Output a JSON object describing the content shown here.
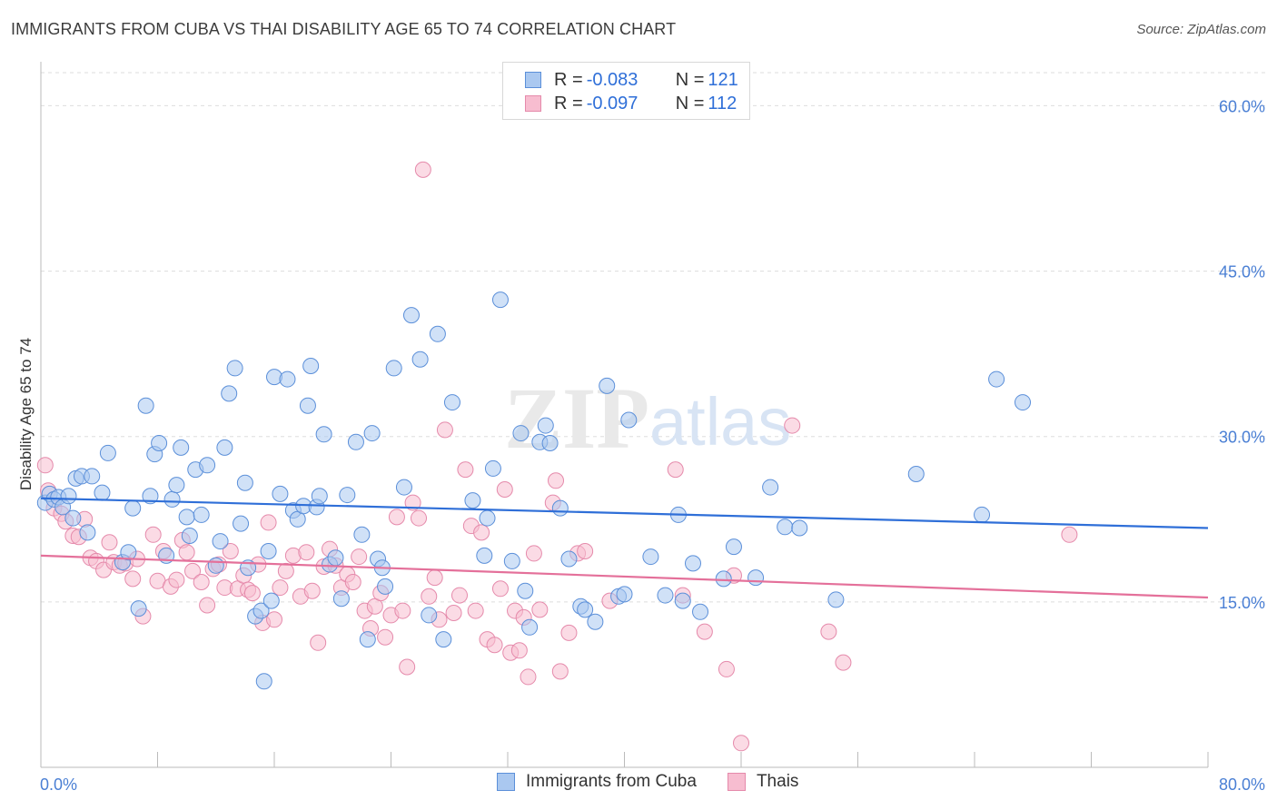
{
  "header": {
    "title": "IMMIGRANTS FROM CUBA VS THAI DISABILITY AGE 65 TO 74 CORRELATION CHART",
    "source": "Source: ZipAtlas.com"
  },
  "watermark": {
    "zip": "ZIP",
    "atlas": "atlas"
  },
  "legend": {
    "rows": [
      {
        "r_label": "R = ",
        "r_value": "-0.083",
        "n_label": "N = ",
        "n_value": "121"
      },
      {
        "r_label": "R = ",
        "r_value": "-0.097",
        "n_label": "N = ",
        "n_value": "112"
      }
    ]
  },
  "bottom_legend": {
    "items": [
      {
        "label": "Immigrants from Cuba"
      },
      {
        "label": "Thais"
      }
    ]
  },
  "chart_data": {
    "type": "scatter",
    "title": "IMMIGRANTS FROM CUBA VS THAI DISABILITY AGE 65 TO 74 CORRELATION CHART",
    "xlabel": "",
    "ylabel": "Disability Age 65 to 74",
    "xlim": [
      0,
      80
    ],
    "ylim": [
      0,
      63
    ],
    "x_tick_labels": [
      "0.0%",
      "80.0%"
    ],
    "y_ticks": [
      15,
      30,
      45,
      60
    ],
    "y_tick_labels": [
      "15.0%",
      "30.0%",
      "45.0%",
      "60.0%"
    ],
    "grid": true,
    "legend_position": "top-center",
    "colors": {
      "cuba_fill": "#aac8f0",
      "cuba_stroke": "#5b8fd9",
      "cuba_line": "#2f6fd8",
      "thai_fill": "#f7bdd0",
      "thai_stroke": "#e58aab",
      "thai_line": "#e4709a",
      "tick_text": "#4a7fd4",
      "grid": "#dddddd"
    },
    "series": [
      {
        "name": "Immigrants from Cuba",
        "trend": {
          "x": [
            0,
            80
          ],
          "y": [
            24.4,
            21.7
          ]
        },
        "points": [
          [
            0.3,
            24.0
          ],
          [
            0.6,
            24.8
          ],
          [
            0.9,
            24.3
          ],
          [
            1.2,
            24.5
          ],
          [
            1.5,
            23.6
          ],
          [
            1.9,
            24.6
          ],
          [
            2.2,
            22.6
          ],
          [
            2.4,
            26.2
          ],
          [
            2.8,
            26.4
          ],
          [
            3.2,
            21.3
          ],
          [
            3.5,
            26.4
          ],
          [
            4.2,
            24.9
          ],
          [
            4.6,
            28.5
          ],
          [
            5.6,
            18.6
          ],
          [
            6.0,
            19.5
          ],
          [
            6.3,
            23.5
          ],
          [
            6.7,
            14.4
          ],
          [
            7.2,
            32.8
          ],
          [
            7.5,
            24.6
          ],
          [
            7.8,
            28.4
          ],
          [
            8.1,
            29.4
          ],
          [
            8.6,
            19.2
          ],
          [
            9.0,
            24.3
          ],
          [
            9.3,
            25.6
          ],
          [
            9.6,
            29.0
          ],
          [
            10.0,
            22.7
          ],
          [
            10.2,
            21.0
          ],
          [
            10.6,
            27.0
          ],
          [
            11.0,
            22.9
          ],
          [
            11.4,
            27.4
          ],
          [
            12.0,
            18.3
          ],
          [
            12.3,
            20.5
          ],
          [
            12.6,
            29.0
          ],
          [
            12.9,
            33.9
          ],
          [
            13.3,
            36.2
          ],
          [
            13.7,
            22.1
          ],
          [
            14.0,
            25.8
          ],
          [
            14.2,
            18.1
          ],
          [
            14.7,
            13.7
          ],
          [
            15.1,
            14.2
          ],
          [
            15.3,
            7.8
          ],
          [
            15.6,
            19.6
          ],
          [
            15.8,
            15.1
          ],
          [
            16.0,
            35.4
          ],
          [
            16.4,
            24.8
          ],
          [
            16.9,
            35.2
          ],
          [
            17.3,
            23.3
          ],
          [
            17.6,
            22.5
          ],
          [
            18.0,
            23.7
          ],
          [
            18.3,
            32.8
          ],
          [
            18.5,
            36.4
          ],
          [
            18.9,
            23.6
          ],
          [
            19.1,
            24.6
          ],
          [
            19.4,
            30.2
          ],
          [
            19.8,
            18.4
          ],
          [
            20.2,
            19.0
          ],
          [
            20.6,
            15.3
          ],
          [
            21.0,
            24.7
          ],
          [
            21.6,
            29.5
          ],
          [
            22.0,
            21.1
          ],
          [
            22.4,
            11.6
          ],
          [
            22.7,
            30.3
          ],
          [
            23.1,
            18.9
          ],
          [
            23.4,
            18.1
          ],
          [
            23.6,
            16.4
          ],
          [
            24.2,
            36.2
          ],
          [
            24.9,
            25.4
          ],
          [
            25.4,
            41.0
          ],
          [
            26.0,
            37.0
          ],
          [
            26.6,
            13.8
          ],
          [
            27.2,
            39.3
          ],
          [
            27.6,
            11.6
          ],
          [
            28.2,
            33.1
          ],
          [
            29.6,
            24.2
          ],
          [
            30.4,
            19.2
          ],
          [
            30.6,
            22.6
          ],
          [
            31.0,
            27.1
          ],
          [
            31.5,
            42.4
          ],
          [
            32.3,
            18.7
          ],
          [
            32.9,
            30.3
          ],
          [
            33.2,
            16.0
          ],
          [
            33.5,
            12.7
          ],
          [
            34.2,
            29.5
          ],
          [
            34.6,
            31.0
          ],
          [
            34.9,
            29.4
          ],
          [
            35.6,
            23.5
          ],
          [
            36.2,
            18.9
          ],
          [
            37.0,
            14.6
          ],
          [
            37.3,
            14.3
          ],
          [
            38.0,
            13.2
          ],
          [
            38.8,
            34.6
          ],
          [
            39.6,
            15.5
          ],
          [
            40.0,
            15.7
          ],
          [
            40.3,
            31.5
          ],
          [
            41.8,
            19.1
          ],
          [
            42.8,
            15.6
          ],
          [
            43.7,
            22.9
          ],
          [
            44.0,
            15.1
          ],
          [
            44.7,
            18.5
          ],
          [
            45.2,
            14.1
          ],
          [
            46.8,
            17.1
          ],
          [
            47.5,
            20.0
          ],
          [
            49.0,
            17.2
          ],
          [
            50.0,
            25.4
          ],
          [
            51.0,
            21.8
          ],
          [
            52.0,
            21.7
          ],
          [
            54.5,
            15.2
          ],
          [
            60.0,
            26.6
          ],
          [
            64.5,
            22.9
          ],
          [
            65.5,
            35.2
          ],
          [
            67.3,
            33.1
          ]
        ]
      },
      {
        "name": "Thais",
        "trend": {
          "x": [
            0,
            80
          ],
          "y": [
            19.2,
            15.4
          ]
        },
        "points": [
          [
            0.3,
            27.4
          ],
          [
            0.5,
            25.1
          ],
          [
            0.9,
            23.5
          ],
          [
            1.4,
            23.0
          ],
          [
            1.7,
            22.3
          ],
          [
            2.2,
            21.0
          ],
          [
            2.6,
            20.9
          ],
          [
            3.0,
            22.5
          ],
          [
            3.4,
            19.0
          ],
          [
            3.8,
            18.7
          ],
          [
            4.3,
            17.9
          ],
          [
            4.7,
            20.4
          ],
          [
            5.0,
            18.6
          ],
          [
            5.4,
            18.3
          ],
          [
            5.8,
            18.5
          ],
          [
            6.3,
            17.1
          ],
          [
            6.6,
            18.9
          ],
          [
            7.0,
            13.7
          ],
          [
            7.7,
            21.1
          ],
          [
            8.0,
            16.9
          ],
          [
            8.4,
            19.6
          ],
          [
            8.9,
            16.4
          ],
          [
            9.3,
            17.0
          ],
          [
            9.7,
            20.6
          ],
          [
            10.0,
            19.5
          ],
          [
            10.4,
            17.8
          ],
          [
            11.0,
            16.8
          ],
          [
            11.4,
            14.7
          ],
          [
            11.8,
            18.0
          ],
          [
            12.2,
            18.4
          ],
          [
            12.6,
            16.3
          ],
          [
            13.0,
            19.6
          ],
          [
            13.5,
            16.2
          ],
          [
            13.9,
            17.4
          ],
          [
            14.2,
            16.1
          ],
          [
            14.5,
            15.8
          ],
          [
            14.9,
            18.4
          ],
          [
            15.2,
            13.1
          ],
          [
            15.6,
            22.2
          ],
          [
            16.0,
            13.4
          ],
          [
            16.4,
            16.3
          ],
          [
            16.8,
            17.8
          ],
          [
            17.3,
            19.2
          ],
          [
            17.8,
            15.5
          ],
          [
            18.2,
            19.5
          ],
          [
            18.6,
            16.0
          ],
          [
            19.0,
            11.3
          ],
          [
            19.4,
            18.2
          ],
          [
            19.8,
            19.8
          ],
          [
            20.2,
            18.3
          ],
          [
            20.6,
            16.3
          ],
          [
            21.0,
            17.5
          ],
          [
            21.4,
            16.8
          ],
          [
            21.8,
            19.1
          ],
          [
            22.2,
            14.2
          ],
          [
            22.6,
            12.6
          ],
          [
            22.9,
            14.6
          ],
          [
            23.3,
            15.8
          ],
          [
            23.6,
            11.8
          ],
          [
            24.0,
            13.8
          ],
          [
            24.4,
            22.7
          ],
          [
            24.8,
            14.2
          ],
          [
            25.1,
            9.1
          ],
          [
            25.5,
            24.0
          ],
          [
            25.9,
            22.6
          ],
          [
            26.2,
            54.2
          ],
          [
            26.6,
            15.5
          ],
          [
            27.0,
            17.2
          ],
          [
            27.3,
            13.4
          ],
          [
            27.7,
            30.6
          ],
          [
            28.3,
            14.0
          ],
          [
            28.7,
            15.6
          ],
          [
            29.1,
            27.0
          ],
          [
            29.5,
            21.9
          ],
          [
            29.8,
            14.2
          ],
          [
            30.2,
            21.3
          ],
          [
            30.6,
            11.6
          ],
          [
            31.1,
            11.1
          ],
          [
            31.5,
            16.2
          ],
          [
            31.8,
            25.2
          ],
          [
            32.2,
            10.4
          ],
          [
            32.5,
            14.2
          ],
          [
            32.8,
            10.6
          ],
          [
            33.1,
            13.6
          ],
          [
            33.4,
            8.2
          ],
          [
            33.8,
            19.4
          ],
          [
            34.2,
            14.3
          ],
          [
            35.1,
            24.0
          ],
          [
            35.3,
            26.0
          ],
          [
            35.6,
            8.7
          ],
          [
            36.2,
            12.2
          ],
          [
            36.8,
            19.4
          ],
          [
            37.3,
            19.6
          ],
          [
            39.0,
            15.1
          ],
          [
            43.5,
            27.0
          ],
          [
            44.0,
            15.6
          ],
          [
            45.5,
            12.3
          ],
          [
            47.0,
            8.9
          ],
          [
            47.5,
            17.4
          ],
          [
            48.0,
            2.2
          ],
          [
            51.5,
            31.0
          ],
          [
            54.0,
            12.3
          ],
          [
            55.0,
            9.5
          ],
          [
            70.5,
            21.1
          ]
        ]
      }
    ]
  }
}
